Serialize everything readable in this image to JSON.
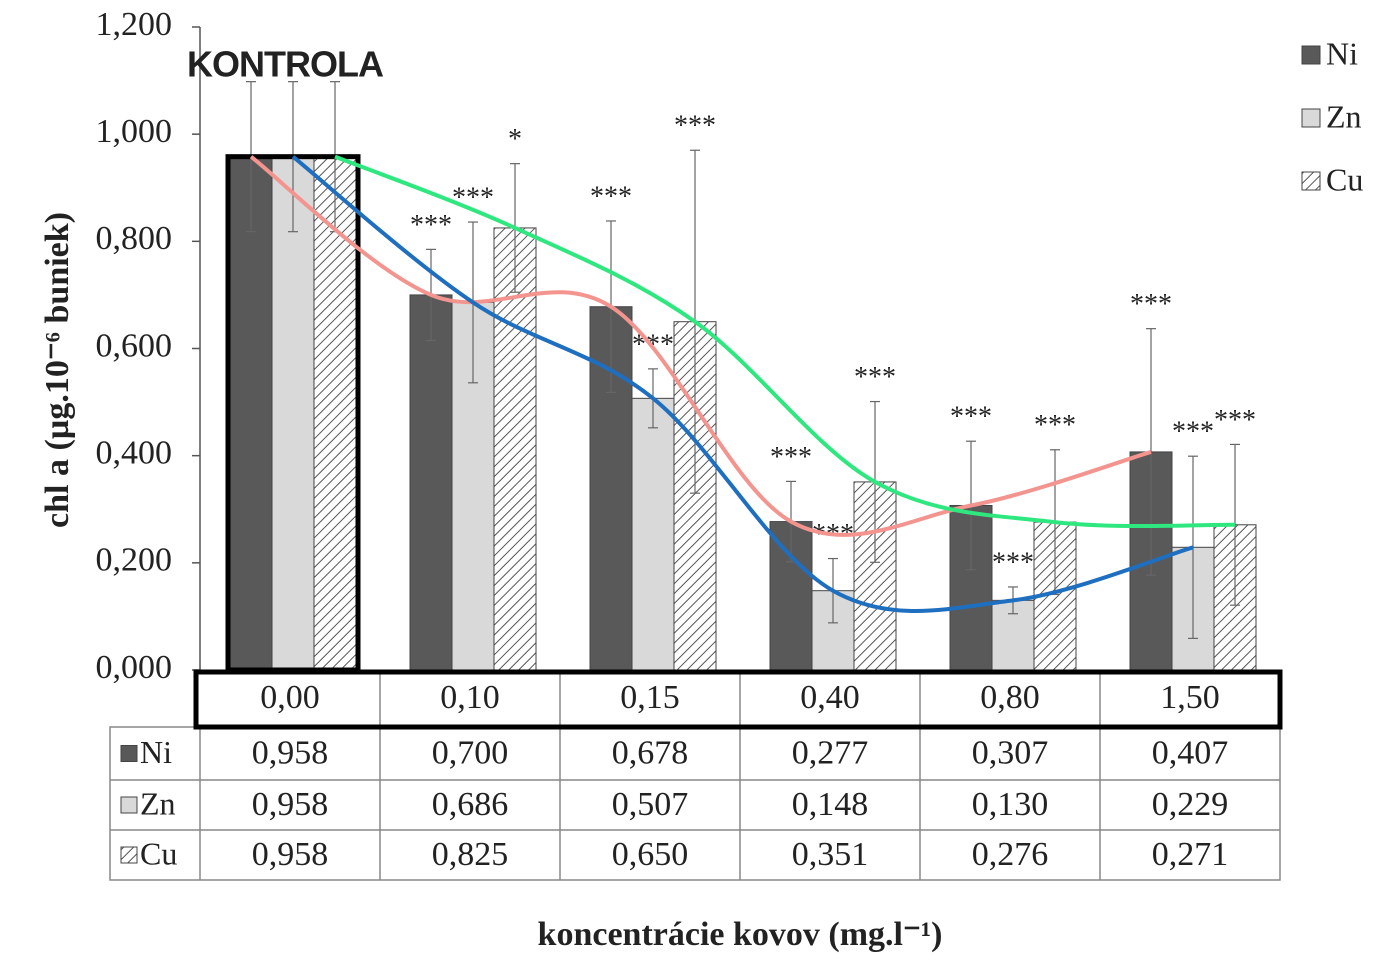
{
  "chart_data": {
    "type": "bar",
    "y_label": "chl a (µg.10⁻⁶ buniek)",
    "x_label": "koncentrácie kovov (mg.l⁻¹)",
    "annotation": "KONTROLA",
    "categories": [
      "0,00",
      "0,10",
      "0,15",
      "0,40",
      "0,80",
      "1,50"
    ],
    "ylim": [
      0,
      1.2
    ],
    "yticks": [
      {
        "value": 0,
        "label": "0,000"
      },
      {
        "value": 0.2,
        "label": "0,200"
      },
      {
        "value": 0.4,
        "label": "0,400"
      },
      {
        "value": 0.6,
        "label": "0,600"
      },
      {
        "value": 0.8,
        "label": "0,800"
      },
      {
        "value": 1.0,
        "label": "1,000"
      },
      {
        "value": 1.2,
        "label": "1,200"
      }
    ],
    "series": [
      {
        "name": "Ni",
        "color": "#595959",
        "hatch": false,
        "trend_color": "#f4948f",
        "values": [
          0.958,
          0.7,
          0.678,
          0.277,
          0.307,
          0.407
        ],
        "value_labels": [
          "0,958",
          "0,700",
          "0,678",
          "0,277",
          "0,307",
          "0,407"
        ],
        "errors": [
          0.14,
          0.085,
          0.16,
          0.075,
          0.12,
          0.23
        ],
        "significance": [
          null,
          "***",
          "***",
          "***",
          "***",
          "***"
        ]
      },
      {
        "name": "Zn",
        "color": "#d9d9d9",
        "hatch": false,
        "trend_color": "#1f6fc0",
        "values": [
          0.958,
          0.686,
          0.507,
          0.148,
          0.13,
          0.229
        ],
        "value_labels": [
          "0,958",
          "0,686",
          "0,507",
          "0,148",
          "0,130",
          "0,229"
        ],
        "errors": [
          0.14,
          0.15,
          0.055,
          0.06,
          0.025,
          0.17
        ],
        "significance": [
          null,
          "***",
          "***",
          "***",
          "***",
          "***"
        ]
      },
      {
        "name": "Cu",
        "color": "#ffffff",
        "hatch": true,
        "trend_color": "#2ee87f",
        "values": [
          0.958,
          0.825,
          0.65,
          0.351,
          0.276,
          0.271
        ],
        "value_labels": [
          "0,958",
          "0,825",
          "0,650",
          "0,351",
          "0,276",
          "0,271"
        ],
        "errors": [
          0.14,
          0.12,
          0.32,
          0.15,
          0.135,
          0.15
        ],
        "significance": [
          null,
          "*",
          "***",
          "***",
          "***",
          "***"
        ]
      }
    ]
  }
}
